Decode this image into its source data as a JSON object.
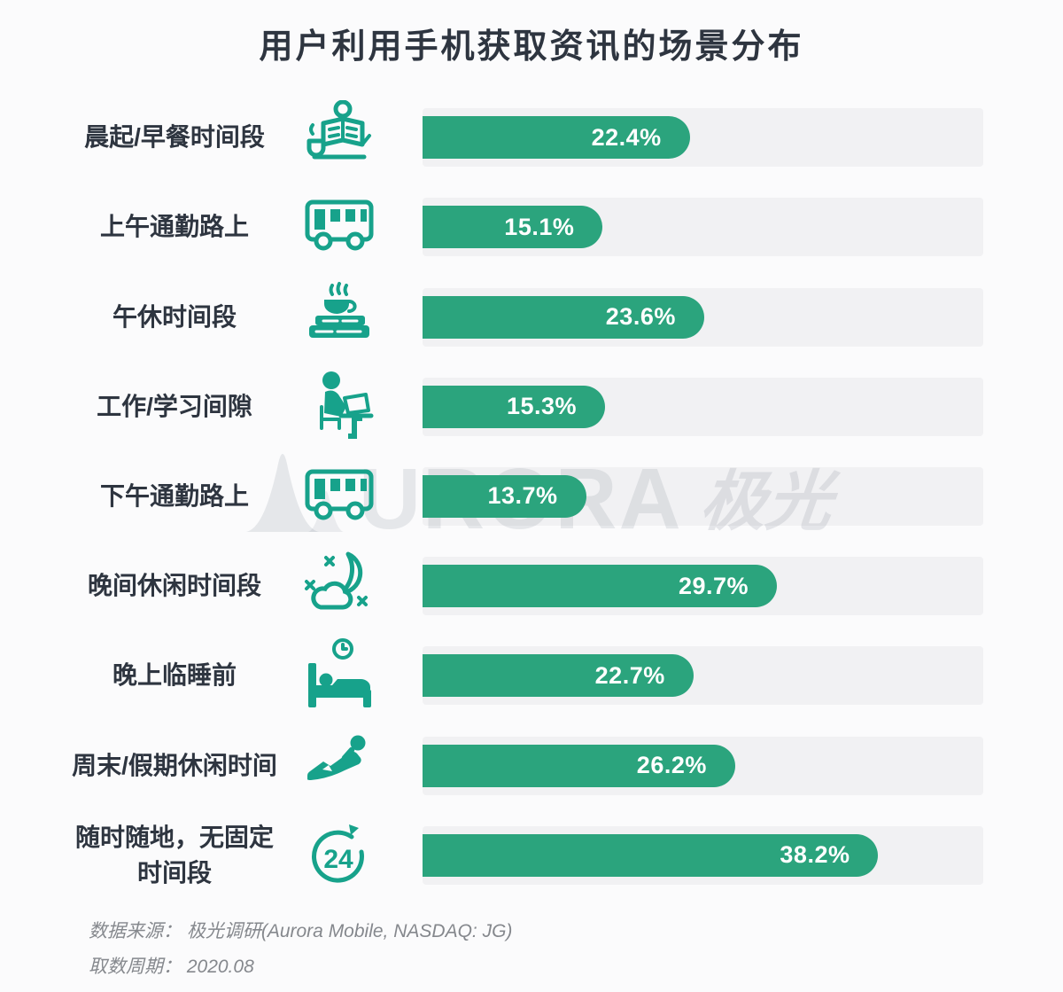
{
  "title": "用户利用手机获取资讯的场景分布",
  "watermark": {
    "latin": "URORA",
    "cjk": "极光"
  },
  "footer": {
    "source_line": "数据来源： 极光调研(Aurora Mobile, NASDAQ: JG)",
    "period_line": "取数周期： 2020.08"
  },
  "colors": {
    "bar": "#2BA47D",
    "icon": "#17A28B",
    "track": "#F1F1F3",
    "title_text": "#2E3540",
    "value_text": "#FFFFFF",
    "footer_text": "#85888D"
  },
  "chart_data": {
    "type": "bar",
    "orientation": "horizontal",
    "title": "用户利用手机获取资讯的场景分布",
    "categories": [
      "晨起/早餐时间段",
      "上午通勤路上",
      "午休时间段",
      "工作/学习间隙",
      "下午通勤路上",
      "晚间休闲时间段",
      "晚上临睡前",
      "周末/假期休闲时间",
      "随时随地，无固定时间段"
    ],
    "categories_display": [
      "晨起/早餐时间段",
      "上午通勤路上",
      "午休时间段",
      "工作/学习间隙",
      "下午通勤路上",
      "晚间休闲时间段",
      "晚上临睡前",
      "周末/假期休闲时间",
      "随时随地，无固定\n时间段"
    ],
    "values": [
      22.4,
      15.1,
      23.6,
      15.3,
      13.7,
      29.7,
      22.7,
      26.2,
      38.2
    ],
    "value_labels": [
      "22.4%",
      "15.1%",
      "23.6%",
      "15.3%",
      "13.7%",
      "29.7%",
      "22.7%",
      "26.2%",
      "38.2%"
    ],
    "icons": [
      "reading-newspaper",
      "bus",
      "coffee-books",
      "person-laptop",
      "bus",
      "moon-cloud",
      "bed-clock",
      "person-reclining",
      "24-hours"
    ],
    "xlabel": "",
    "ylabel": "",
    "xlim": [
      0,
      47
    ],
    "grid": false,
    "value_label_position": "inside-end",
    "source": "极光调研(Aurora Mobile, NASDAQ: JG)",
    "period": "2020.08"
  }
}
